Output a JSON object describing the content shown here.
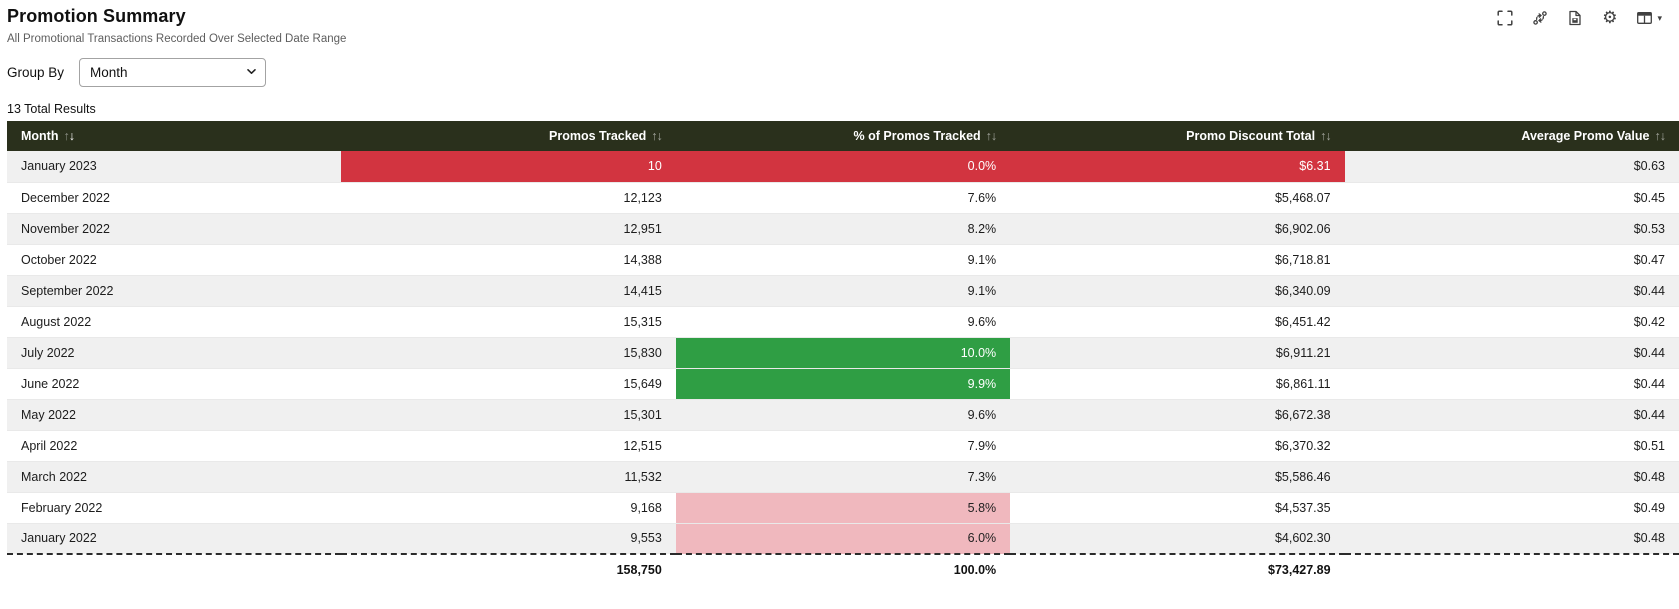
{
  "header": {
    "title": "Promotion Summary",
    "subtitle": "All Promotional Transactions Recorded Over Selected Date Range",
    "toolbar_icons": [
      "fullscreen",
      "flow-arrows",
      "export-file",
      "settings-gear",
      "table-layout-menu"
    ],
    "gear_glyph": "⚙",
    "layout_caret": "▾"
  },
  "controls": {
    "group_by_label": "Group By",
    "group_by": {
      "value": "Month",
      "options": [
        "Month"
      ]
    }
  },
  "results_count": "13 Total Results",
  "table": {
    "sort_icons": {
      "asc": "↑",
      "desc": "↓"
    },
    "columns": [
      {
        "label": "Month",
        "sort": "desc"
      },
      {
        "label": "Promos Tracked",
        "sort": "none"
      },
      {
        "label": "% of Promos Tracked",
        "sort": "none"
      },
      {
        "label": "Promo Discount Total",
        "sort": "none"
      },
      {
        "label": "Average Promo Value",
        "sort": "none"
      }
    ],
    "rows": [
      {
        "month": "January 2023",
        "promos": "10",
        "pct": "0.0%",
        "discount": "$6.31",
        "avg": "$0.63",
        "highlight": "red"
      },
      {
        "month": "December 2022",
        "promos": "12,123",
        "pct": "7.6%",
        "discount": "$5,468.07",
        "avg": "$0.45",
        "highlight": ""
      },
      {
        "month": "November 2022",
        "promos": "12,951",
        "pct": "8.2%",
        "discount": "$6,902.06",
        "avg": "$0.53",
        "highlight": ""
      },
      {
        "month": "October 2022",
        "promos": "14,388",
        "pct": "9.1%",
        "discount": "$6,718.81",
        "avg": "$0.47",
        "highlight": ""
      },
      {
        "month": "September 2022",
        "promos": "14,415",
        "pct": "9.1%",
        "discount": "$6,340.09",
        "avg": "$0.44",
        "highlight": ""
      },
      {
        "month": "August 2022",
        "promos": "15,315",
        "pct": "9.6%",
        "discount": "$6,451.42",
        "avg": "$0.42",
        "highlight": ""
      },
      {
        "month": "July 2022",
        "promos": "15,830",
        "pct": "10.0%",
        "discount": "$6,911.21",
        "avg": "$0.44",
        "highlight": "green"
      },
      {
        "month": "June 2022",
        "promos": "15,649",
        "pct": "9.9%",
        "discount": "$6,861.11",
        "avg": "$0.44",
        "highlight": "green"
      },
      {
        "month": "May 2022",
        "promos": "15,301",
        "pct": "9.6%",
        "discount": "$6,672.38",
        "avg": "$0.44",
        "highlight": ""
      },
      {
        "month": "April 2022",
        "promos": "12,515",
        "pct": "7.9%",
        "discount": "$6,370.32",
        "avg": "$0.51",
        "highlight": ""
      },
      {
        "month": "March 2022",
        "promos": "11,532",
        "pct": "7.3%",
        "discount": "$5,586.46",
        "avg": "$0.48",
        "highlight": ""
      },
      {
        "month": "February 2022",
        "promos": "9,168",
        "pct": "5.8%",
        "discount": "$4,537.35",
        "avg": "$0.49",
        "highlight": "pink"
      },
      {
        "month": "January 2022",
        "promos": "9,553",
        "pct": "6.0%",
        "discount": "$4,602.30",
        "avg": "$0.48",
        "highlight": "pink"
      }
    ],
    "footer": {
      "month": "",
      "promos": "158,750",
      "pct": "100.0%",
      "discount": "$73,427.89",
      "avg": ""
    }
  },
  "colors": {
    "header_bg": "#2a301c",
    "highlight_red": "#d23440",
    "highlight_green": "#2f9e44",
    "highlight_pink": "#f0b8be",
    "zebra_row": "#f0f0f0"
  }
}
